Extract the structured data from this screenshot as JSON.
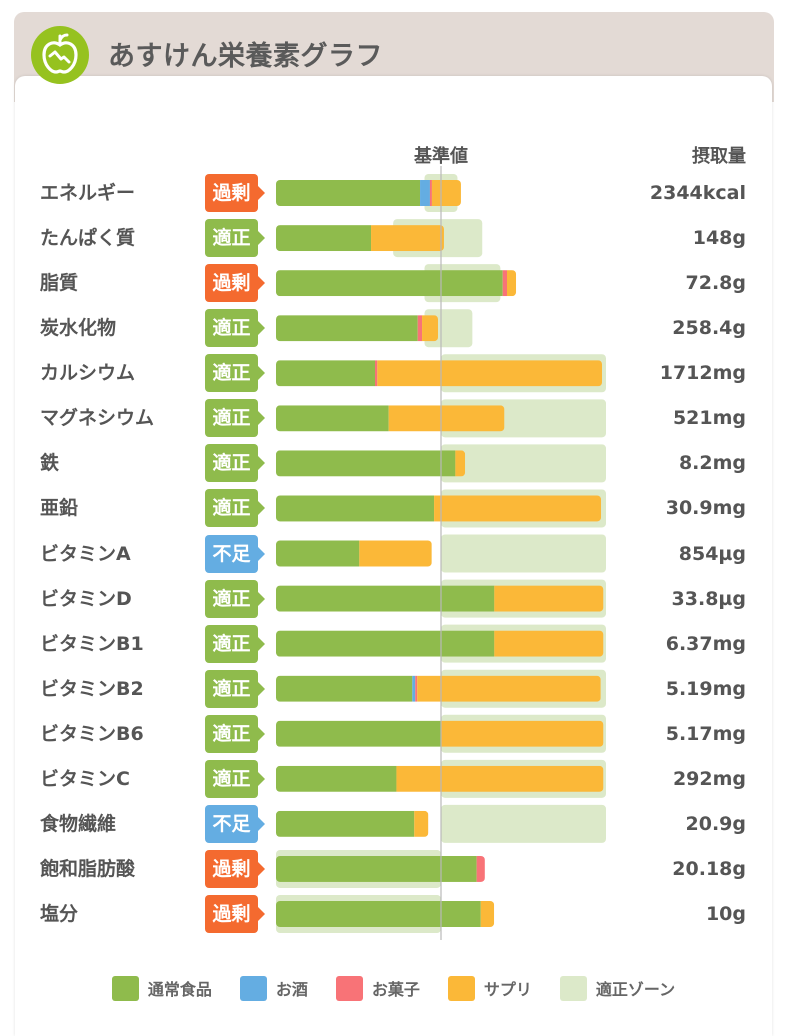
{
  "app": {
    "title": "あすけん栄養素グラフ",
    "logo_icon": "apple-chart-icon"
  },
  "columns": {
    "reference": "基準値",
    "intake": "摂取量"
  },
  "colors": {
    "food": "#8fbb4c",
    "alcohol": "#64ade2",
    "snack": "#f87377",
    "supplement": "#fbb838",
    "zone": "#dce9c9",
    "status_excess": "#f46a2f",
    "status_ok": "#8fbb4c",
    "status_deficient": "#64ade2",
    "header_bg": "#e3dad5",
    "logo": "#96c21f"
  },
  "legend": [
    {
      "key": "food",
      "label": "通常食品"
    },
    {
      "key": "alcohol",
      "label": "お酒"
    },
    {
      "key": "snack",
      "label": "お菓子"
    },
    {
      "key": "supplement",
      "label": "サプリ"
    },
    {
      "key": "zone",
      "label": "適正ゾーン"
    }
  ],
  "chart_data": {
    "type": "bar",
    "orientation": "horizontal",
    "stacked": true,
    "unit": "percent of reference value (基準値 = 100)",
    "xlim": [
      0,
      200
    ],
    "reference_line": 100,
    "categories": [
      "エネルギー",
      "たんぱく質",
      "脂質",
      "炭水化物",
      "カルシウム",
      "マグネシウム",
      "鉄",
      "亜鉛",
      "ビタミンA",
      "ビタミンD",
      "ビタミンB1",
      "ビタミンB2",
      "ビタミンB6",
      "ビタミンC",
      "食物繊維",
      "飽和脂肪酸",
      "塩分"
    ],
    "status": [
      "過剰",
      "適正",
      "過剰",
      "適正",
      "適正",
      "適正",
      "適正",
      "適正",
      "不足",
      "適正",
      "適正",
      "適正",
      "適正",
      "適正",
      "不足",
      "過剰",
      "過剰"
    ],
    "status_kind": [
      "excess",
      "ok",
      "excess",
      "ok",
      "ok",
      "ok",
      "ok",
      "ok",
      "deficient",
      "ok",
      "ok",
      "ok",
      "ok",
      "ok",
      "deficient",
      "excess",
      "excess"
    ],
    "intake": [
      "2344kcal",
      "148g",
      "72.8g",
      "258.4g",
      "1712mg",
      "521mg",
      "8.2mg",
      "30.9mg",
      "854µg",
      "33.8µg",
      "6.37mg",
      "5.19mg",
      "5.17mg",
      "292mg",
      "20.9g",
      "20.18g",
      "10g"
    ],
    "series": [
      {
        "name": "通常食品",
        "key": "food",
        "values": [
          87.3,
          57.6,
          137.4,
          85.9,
          60.0,
          68.3,
          108.7,
          95.8,
          50.5,
          132.3,
          132.3,
          82.6,
          100.0,
          73.0,
          83.8,
          121.6,
          124.1
        ]
      },
      {
        "name": "お酒",
        "key": "alcohol",
        "values": [
          6.0,
          0,
          0,
          0,
          0,
          0,
          0,
          0,
          0,
          0,
          0,
          1.8,
          0,
          0,
          0,
          0,
          0
        ]
      },
      {
        "name": "お菓子",
        "key": "snack",
        "values": [
          1.2,
          0,
          2.6,
          2.6,
          1.4,
          0,
          0,
          0,
          0,
          0,
          0,
          1.2,
          0,
          0,
          0,
          5.0,
          0
        ]
      },
      {
        "name": "サプリ",
        "key": "supplement",
        "values": [
          17.6,
          44.2,
          5.5,
          9.7,
          136.2,
          70.1,
          5.9,
          101.2,
          43.9,
          66.1,
          66.1,
          111.2,
          98.4,
          125.4,
          8.5,
          0,
          8.1
        ]
      }
    ],
    "appropriate_zone": [
      [
        90,
        110
      ],
      [
        71,
        125
      ],
      [
        90,
        136
      ],
      [
        90,
        119
      ],
      [
        100,
        200
      ],
      [
        100,
        200
      ],
      [
        100,
        200
      ],
      [
        100,
        200
      ],
      [
        100,
        200
      ],
      [
        100,
        200
      ],
      [
        100,
        200
      ],
      [
        100,
        200
      ],
      [
        100,
        200
      ],
      [
        100,
        200
      ],
      [
        100,
        200
      ],
      [
        0,
        100
      ],
      [
        0,
        100
      ]
    ]
  }
}
